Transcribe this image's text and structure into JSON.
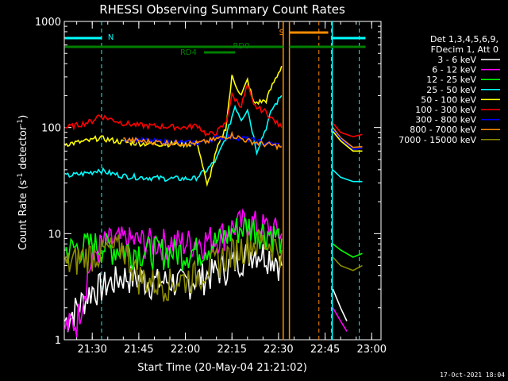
{
  "chart_data": {
    "type": "line",
    "title": "RHESSI Observing Summary Count Rates",
    "xlabel": "Start Time (20-May-04 21:21:02)",
    "ylabel_main": "Count Rate (s",
    "ylabel_sup1": "-1",
    "ylabel_mid": " detector",
    "ylabel_sup2": "-1",
    "ylabel_end": ")",
    "yscale": "log",
    "ylim": [
      1,
      1000
    ],
    "xlim_min": [
      21.0,
      23.0
    ],
    "x_ticks": [
      {
        "m": 30,
        "label": "21:30"
      },
      {
        "m": 45,
        "label": "21:45"
      },
      {
        "m": 60,
        "label": "22:00"
      },
      {
        "m": 75,
        "label": "22:15"
      },
      {
        "m": 90,
        "label": "22:30"
      },
      {
        "m": 105,
        "label": "22:45"
      },
      {
        "m": 120,
        "label": "23:00"
      }
    ],
    "y_ticks": [
      {
        "v": 1,
        "label": "1"
      },
      {
        "v": 10,
        "label": "10"
      },
      {
        "v": 100,
        "label": "100"
      },
      {
        "v": 1000,
        "label": "1000"
      }
    ],
    "legend_header": [
      "Det 1,3,4,5,6,9,",
      "FDecim 1, Att 0"
    ],
    "series": [
      {
        "name": "3 - 6 keV",
        "color": "#ffffff",
        "values": [
          [
            21.2,
            1.5
          ],
          [
            26,
            2.2
          ],
          [
            30,
            3
          ],
          [
            33,
            3.2
          ],
          [
            36,
            3.5
          ],
          [
            40,
            4
          ],
          [
            45,
            3.8
          ],
          [
            50,
            3.5
          ],
          [
            55,
            3.6
          ],
          [
            60,
            3.4
          ],
          [
            63,
            3.8
          ],
          [
            66,
            4
          ],
          [
            70,
            4.5
          ],
          [
            74,
            5
          ],
          [
            78,
            6
          ],
          [
            82,
            7
          ],
          [
            86,
            6.5
          ],
          [
            89,
            6
          ],
          [
            91,
            5
          ]
        ]
      },
      {
        "name": "6 - 12 keV",
        "color": "#ff00ff",
        "values": [
          [
            21.2,
            1.3
          ],
          [
            25,
            1.5
          ],
          [
            30,
            6
          ],
          [
            33,
            8
          ],
          [
            36,
            8.5
          ],
          [
            40,
            8.7
          ],
          [
            45,
            8.5
          ],
          [
            50,
            8.4
          ],
          [
            55,
            8.4
          ],
          [
            60,
            8.3
          ],
          [
            64,
            8.5
          ],
          [
            68,
            9
          ],
          [
            72,
            10
          ],
          [
            76,
            12
          ],
          [
            80,
            13
          ],
          [
            84,
            12
          ],
          [
            88,
            11
          ],
          [
            91,
            10
          ]
        ]
      },
      {
        "name": "12 - 25 keV",
        "color": "#00ff00",
        "values": [
          [
            21.2,
            7
          ],
          [
            26,
            7.5
          ],
          [
            30,
            8
          ],
          [
            35,
            7.5
          ],
          [
            40,
            7.2
          ],
          [
            45,
            7
          ],
          [
            50,
            7
          ],
          [
            55,
            6.8
          ],
          [
            60,
            6.8
          ],
          [
            64,
            7
          ],
          [
            68,
            8
          ],
          [
            72,
            9
          ],
          [
            76,
            11
          ],
          [
            80,
            12
          ],
          [
            84,
            11
          ],
          [
            88,
            10
          ],
          [
            91,
            9
          ]
        ]
      },
      {
        "name": "25 - 50 keV",
        "color": "#00ffff",
        "values": [
          [
            21.2,
            35
          ],
          [
            25,
            36
          ],
          [
            30,
            38
          ],
          [
            32,
            40
          ],
          [
            36,
            37
          ],
          [
            40,
            35
          ],
          [
            45,
            34
          ],
          [
            50,
            33.5
          ],
          [
            55,
            33
          ],
          [
            60,
            33
          ],
          [
            63,
            33
          ],
          [
            67,
            40
          ],
          [
            70,
            50
          ],
          [
            73,
            80
          ],
          [
            76,
            160
          ],
          [
            78,
            120
          ],
          [
            80,
            150
          ],
          [
            83,
            60
          ],
          [
            86,
            100
          ],
          [
            88,
            150
          ],
          [
            91,
            200
          ]
        ]
      },
      {
        "name": "50 - 100 keV",
        "color": "#ffff00",
        "values": [
          [
            21.2,
            70
          ],
          [
            25,
            72
          ],
          [
            30,
            76
          ],
          [
            32,
            80
          ],
          [
            36,
            76
          ],
          [
            40,
            73
          ],
          [
            45,
            71
          ],
          [
            50,
            70
          ],
          [
            55,
            70
          ],
          [
            60,
            70
          ],
          [
            64,
            70
          ],
          [
            67,
            28
          ],
          [
            70,
            60
          ],
          [
            73,
            100
          ],
          [
            75,
            300
          ],
          [
            78,
            200
          ],
          [
            80,
            280
          ],
          [
            82,
            170
          ],
          [
            86,
            180
          ],
          [
            88,
            250
          ],
          [
            91,
            380
          ]
        ]
      },
      {
        "name": "100 - 300 keV",
        "color": "#ff0000",
        "values": [
          [
            21.2,
            100
          ],
          [
            25,
            105
          ],
          [
            30,
            115
          ],
          [
            32,
            130
          ],
          [
            36,
            120
          ],
          [
            40,
            110
          ],
          [
            45,
            105
          ],
          [
            50,
            103
          ],
          [
            55,
            102
          ],
          [
            60,
            100
          ],
          [
            64,
            105
          ],
          [
            67,
            85
          ],
          [
            70,
            90
          ],
          [
            73,
            110
          ],
          [
            75,
            200
          ],
          [
            78,
            160
          ],
          [
            80,
            250
          ],
          [
            82,
            160
          ],
          [
            86,
            140
          ],
          [
            88,
            120
          ],
          [
            91,
            100
          ]
        ]
      },
      {
        "name": "300 - 800 keV",
        "color": "#0000ff",
        "values": [
          [
            40,
            78
          ],
          [
            45,
            76
          ],
          [
            50,
            74
          ],
          [
            55,
            73
          ],
          [
            60,
            72
          ],
          [
            64,
            72
          ],
          [
            67,
            75
          ],
          [
            70,
            80
          ],
          [
            75,
            82
          ],
          [
            80,
            78
          ],
          [
            85,
            72
          ],
          [
            91,
            68
          ]
        ]
      },
      {
        "name": "800 - 7000 keV",
        "color": "#ff8c00",
        "values": [
          [
            40,
            77
          ],
          [
            45,
            75
          ],
          [
            50,
            73
          ],
          [
            55,
            72
          ],
          [
            60,
            71
          ],
          [
            64,
            71
          ],
          [
            67,
            74
          ],
          [
            70,
            78
          ],
          [
            75,
            85
          ],
          [
            80,
            75
          ],
          [
            85,
            70
          ],
          [
            91,
            66
          ]
        ]
      },
      {
        "name": "7000 - 15000 keV",
        "color": "#8b8b00",
        "values": [
          [
            21.2,
            5
          ],
          [
            26,
            6
          ],
          [
            30,
            6.5
          ],
          [
            35,
            7
          ],
          [
            40,
            7.5
          ],
          [
            45,
            4
          ],
          [
            50,
            3.5
          ],
          [
            55,
            3.5
          ],
          [
            60,
            3.8
          ],
          [
            64,
            4.2
          ],
          [
            68,
            5
          ],
          [
            72,
            6
          ],
          [
            76,
            7
          ],
          [
            80,
            8
          ],
          [
            84,
            8.5
          ],
          [
            88,
            8
          ],
          [
            91,
            7
          ]
        ]
      }
    ],
    "segments": [
      {
        "label": "N",
        "color": "#00ffff"
      },
      {
        "label": "RD0",
        "color": "#008000"
      },
      {
        "label": "RD4",
        "color": "#008000"
      },
      {
        "label": "S",
        "color": "#ff8c00"
      }
    ],
    "stamp": "17-Oct-2021 18:04"
  }
}
